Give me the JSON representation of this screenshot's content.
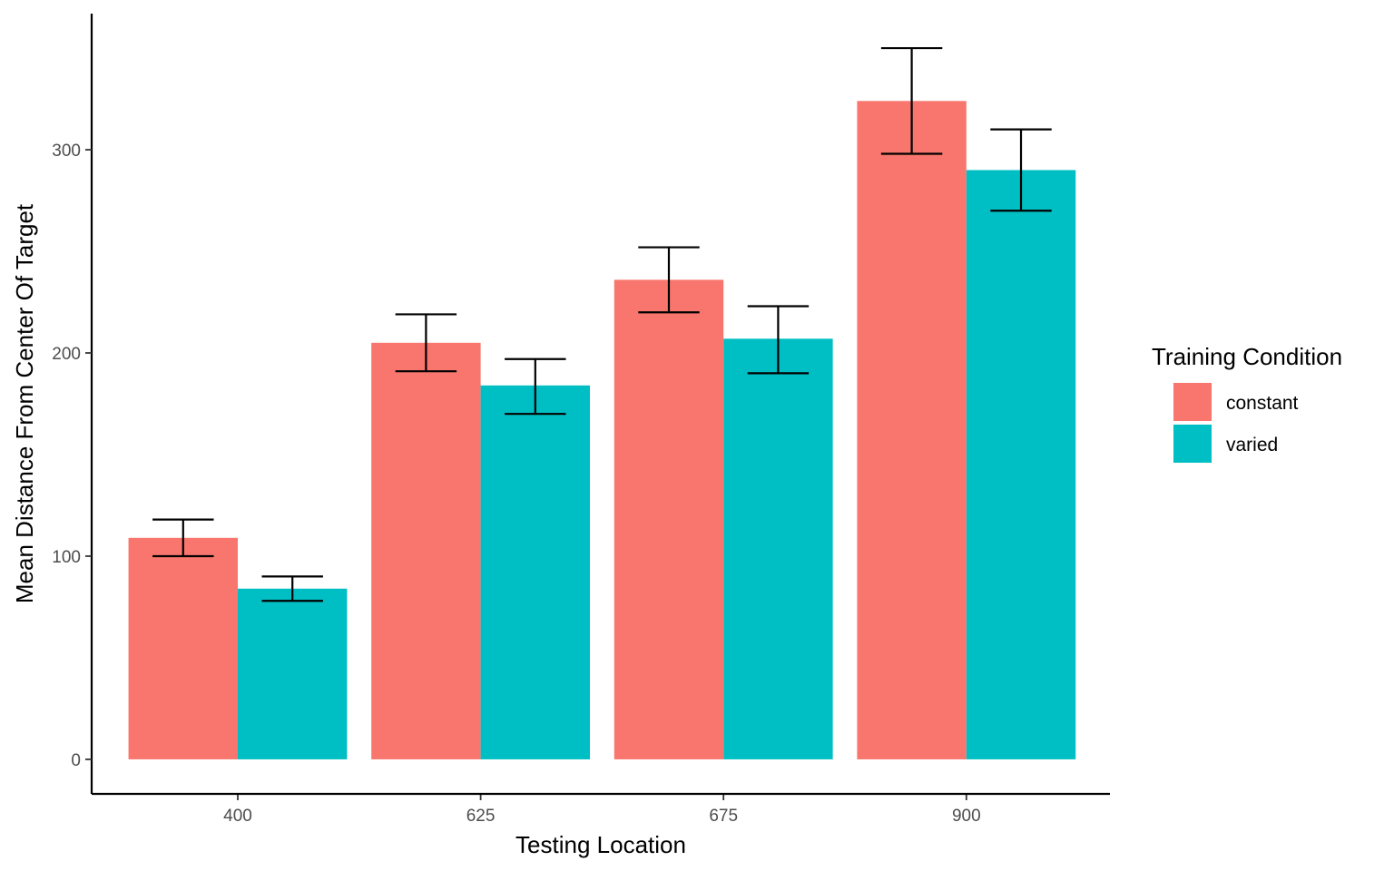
{
  "chart_data": {
    "type": "bar",
    "title": "",
    "xlabel": "Testing Location",
    "ylabel": "Mean Distance From Center Of Target",
    "categories": [
      "400",
      "625",
      "675",
      "900"
    ],
    "ylim": [
      -17,
      367
    ],
    "yticks": [
      0,
      100,
      200,
      300
    ],
    "grid": false,
    "legend": {
      "title": "Training Condition",
      "position": "right"
    },
    "series": [
      {
        "name": "constant",
        "color": "#F8766D",
        "values": [
          109,
          205,
          236,
          324
        ],
        "error_low": [
          100,
          191,
          220,
          298
        ],
        "error_high": [
          118,
          219,
          252,
          350
        ]
      },
      {
        "name": "varied",
        "color": "#00BFC4",
        "values": [
          84,
          184,
          207,
          290
        ],
        "error_low": [
          78,
          170,
          190,
          270
        ],
        "error_high": [
          90,
          197,
          223,
          310
        ]
      }
    ]
  }
}
